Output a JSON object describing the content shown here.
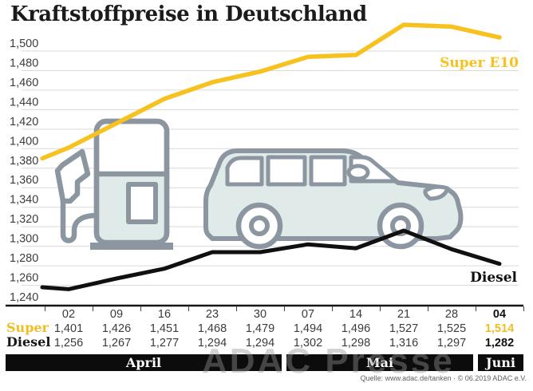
{
  "title": "Kraftstoffpreise in Deutschland",
  "source": "Quelle: www.adac.de/tanken · © 06.2019 ADAC e.V.",
  "watermark": "ADAC Presse",
  "table": {
    "row_labels": [
      "Super",
      "Diesel"
    ]
  },
  "chart_data": {
    "type": "line",
    "title": "Kraftstoffpreise in Deutschland",
    "x_categories": [
      "02",
      "09",
      "16",
      "23",
      "30",
      "07",
      "14",
      "21",
      "28",
      "04"
    ],
    "month_groups": [
      {
        "label": "April",
        "columns": [
          0,
          4
        ]
      },
      {
        "label": "Mai",
        "columns": [
          5,
          8
        ]
      },
      {
        "label": "Juni",
        "columns": [
          9,
          9
        ]
      }
    ],
    "ylim": [
      1240,
      1500
    ],
    "y_tick_step": 20,
    "grid": true,
    "legend_position": "inline-right",
    "y_ticks": [
      {
        "v": 1500,
        "label": "1,500"
      },
      {
        "v": 1480,
        "label": "1,480"
      },
      {
        "v": 1460,
        "label": "1,460"
      },
      {
        "v": 1440,
        "label": "1,440"
      },
      {
        "v": 1420,
        "label": "1,420"
      },
      {
        "v": 1400,
        "label": "1,400"
      },
      {
        "v": 1380,
        "label": "1,380"
      },
      {
        "v": 1360,
        "label": "1,360"
      },
      {
        "v": 1340,
        "label": "1,340"
      },
      {
        "v": 1320,
        "label": "1,320"
      },
      {
        "v": 1300,
        "label": "1,300"
      },
      {
        "v": 1280,
        "label": "1,280"
      },
      {
        "v": 1260,
        "label": "1,260"
      },
      {
        "v": 1240,
        "label": "1,240"
      }
    ],
    "series": [
      {
        "name": "Super E10",
        "color": "#f7c220",
        "edge_start": 1390,
        "values": [
          1401,
          1426,
          1451,
          1468,
          1479,
          1494,
          1496,
          1527,
          1525,
          1514
        ],
        "labels": [
          "1,401",
          "1,426",
          "1,451",
          "1,468",
          "1,479",
          "1,494",
          "1,496",
          "1,527",
          "1,525",
          "1,514"
        ]
      },
      {
        "name": "Diesel",
        "color": "#101010",
        "edge_start": 1258,
        "values": [
          1256,
          1267,
          1277,
          1294,
          1294,
          1302,
          1298,
          1316,
          1297,
          1282
        ],
        "labels": [
          "1,256",
          "1,267",
          "1,277",
          "1,294",
          "1,294",
          "1,302",
          "1,298",
          "1,316",
          "1,297",
          "1,282"
        ]
      }
    ]
  }
}
